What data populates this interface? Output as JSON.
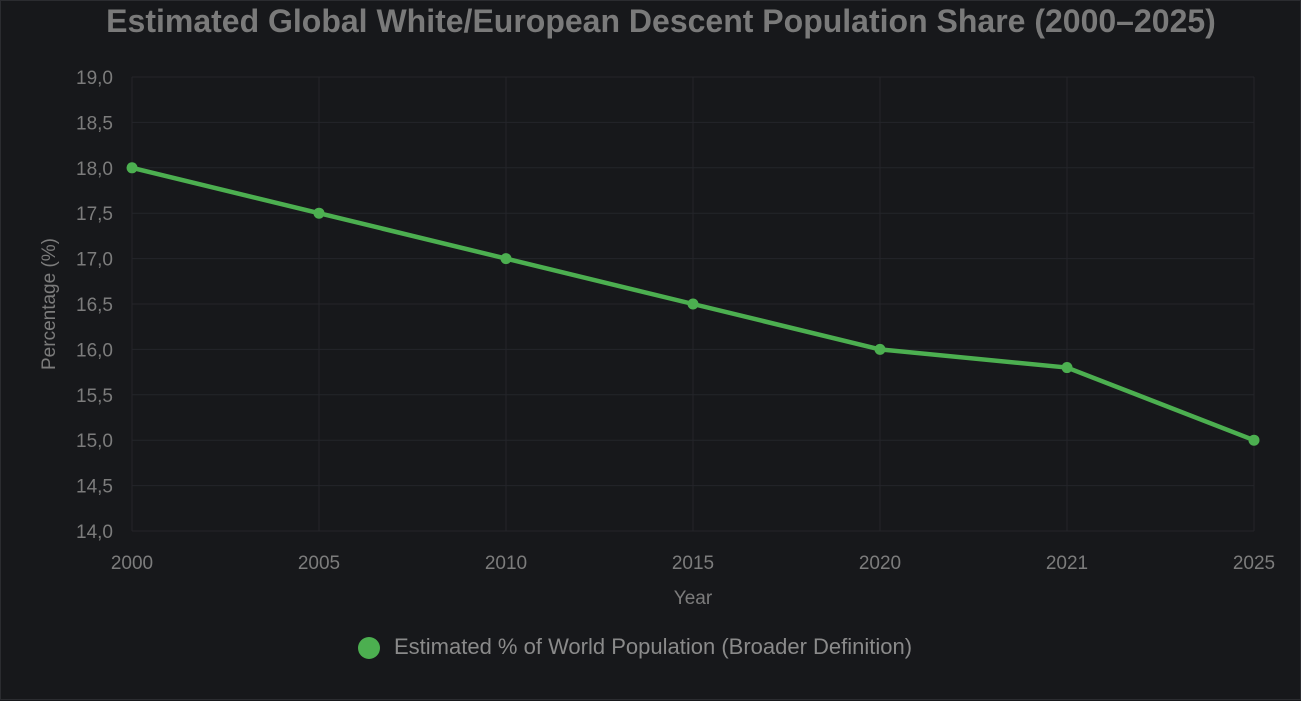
{
  "chart_data": {
    "type": "line",
    "title": "Estimated Global White/European Descent Population Share (2000–2025)",
    "xlabel": "Year",
    "ylabel": "Percentage (%)",
    "categories": [
      "2000",
      "2005",
      "2010",
      "2015",
      "2020",
      "2021",
      "2025"
    ],
    "series": [
      {
        "name": "Estimated % of World Population (Broader Definition)",
        "values": [
          18.0,
          17.5,
          17.0,
          16.5,
          16.0,
          15.8,
          15.0
        ],
        "color": "#4caf50"
      }
    ],
    "ylim": [
      14.0,
      19.0
    ],
    "y_ticks": [
      "14,0",
      "14,5",
      "15,0",
      "15,5",
      "16,0",
      "16,5",
      "17,0",
      "17,5",
      "18,0",
      "18,5",
      "19,0"
    ],
    "grid": true,
    "legend_position": "bottom-center"
  },
  "colors": {
    "background": "#17181b",
    "grid": "#24252a",
    "text": "#7c7c7c"
  }
}
